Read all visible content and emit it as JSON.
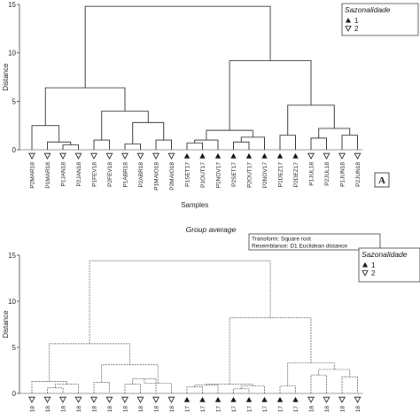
{
  "chart_data": [
    {
      "type": "dendrogram",
      "title": "",
      "xlabel": "Samples",
      "ylabel": "Distance",
      "ylim": [
        0,
        15
      ],
      "yticks": [
        0,
        5,
        10,
        15
      ],
      "panel_letter": "A",
      "legend": {
        "title": "Sazonalidade",
        "entries": [
          {
            "symbol": "filled-triangle",
            "label": "1"
          },
          {
            "symbol": "open-triangle-down",
            "label": "2"
          }
        ],
        "placement": "top-right"
      },
      "leaves": [
        {
          "label": "P2MAR18",
          "group": "2"
        },
        {
          "label": "P1MAR18",
          "group": "2"
        },
        {
          "label": "P1JAN18",
          "group": "2"
        },
        {
          "label": "P2JAN18",
          "group": "2"
        },
        {
          "label": "P1FEV18",
          "group": "2"
        },
        {
          "label": "P2FEV18",
          "group": "2"
        },
        {
          "label": "P1ABR18",
          "group": "2"
        },
        {
          "label": "P2ABR18",
          "group": "2"
        },
        {
          "label": "P1MAIO18",
          "group": "2"
        },
        {
          "label": "P2MAIO18",
          "group": "2"
        },
        {
          "label": "P1SET17",
          "group": "1"
        },
        {
          "label": "P1OUT17",
          "group": "1"
        },
        {
          "label": "P1NOV17",
          "group": "1"
        },
        {
          "label": "P2SET17",
          "group": "1"
        },
        {
          "label": "P2OUT17",
          "group": "1"
        },
        {
          "label": "P2NOV17",
          "group": "1"
        },
        {
          "label": "P1DEZ17",
          "group": "1"
        },
        {
          "label": "P2DEZ17",
          "group": "1"
        },
        {
          "label": "P1JUL18",
          "group": "2"
        },
        {
          "label": "P2JUL18",
          "group": "2"
        },
        {
          "label": "P1JUN18",
          "group": "2"
        },
        {
          "label": "P2JUN18",
          "group": "2"
        }
      ],
      "merges": [
        {
          "id": "a1",
          "left": "L2",
          "right": "L3",
          "height": 0.5
        },
        {
          "id": "a2",
          "left": "L1",
          "right": "a1",
          "height": 0.8
        },
        {
          "id": "a3",
          "left": "L0",
          "right": "a2",
          "height": 2.5
        },
        {
          "id": "a4",
          "left": "L4",
          "right": "L5",
          "height": 1.0
        },
        {
          "id": "a5",
          "left": "L6",
          "right": "L7",
          "height": 0.6
        },
        {
          "id": "a6",
          "left": "L8",
          "right": "L9",
          "height": 1.0
        },
        {
          "id": "a7",
          "left": "a5",
          "right": "a6",
          "height": 2.8
        },
        {
          "id": "a8",
          "left": "a4",
          "right": "a7",
          "height": 4.0
        },
        {
          "id": "a9",
          "left": "a3",
          "right": "a8",
          "height": 6.4
        },
        {
          "id": "b1",
          "left": "L10",
          "right": "L11",
          "height": 0.7
        },
        {
          "id": "b2",
          "left": "b1",
          "right": "L12",
          "height": 1.0
        },
        {
          "id": "b3",
          "left": "L13",
          "right": "L14",
          "height": 0.8
        },
        {
          "id": "b4",
          "left": "b3",
          "right": "L15",
          "height": 1.3
        },
        {
          "id": "b5",
          "left": "b2",
          "right": "b4",
          "height": 2.0
        },
        {
          "id": "b6",
          "left": "L16",
          "right": "L17",
          "height": 1.5
        },
        {
          "id": "b7",
          "left": "L18",
          "right": "L19",
          "height": 1.2
        },
        {
          "id": "b8",
          "left": "L20",
          "right": "L21",
          "height": 1.5
        },
        {
          "id": "b9",
          "left": "b7",
          "right": "b8",
          "height": 2.2
        },
        {
          "id": "b10",
          "left": "b6",
          "right": "b9",
          "height": 4.6
        },
        {
          "id": "b11",
          "left": "b5",
          "right": "b10",
          "height": 9.2
        },
        {
          "id": "root",
          "left": "a9",
          "right": "b11",
          "height": 14.8
        }
      ]
    },
    {
      "type": "dendrogram",
      "title": "Group average",
      "xlabel": "",
      "ylabel": "Distance",
      "ylim": [
        0,
        15
      ],
      "yticks": [
        0,
        5,
        10,
        15
      ],
      "notes": [
        "Transform: Square root",
        "Resemblance: D1 Euclidean distance"
      ],
      "legend": {
        "title": "Sazonalidade",
        "entries": [
          {
            "symbol": "filled-triangle",
            "label": "1"
          },
          {
            "symbol": "open-triangle-down",
            "label": "2"
          }
        ],
        "placement": "top-right"
      },
      "leaves": [
        {
          "label": "18",
          "group": "2"
        },
        {
          "label": "18",
          "group": "2"
        },
        {
          "label": "18",
          "group": "2"
        },
        {
          "label": "18",
          "group": "2"
        },
        {
          "label": "18",
          "group": "2"
        },
        {
          "label": "18",
          "group": "2"
        },
        {
          "label": "18",
          "group": "2"
        },
        {
          "label": "18",
          "group": "2"
        },
        {
          "label": "18",
          "group": "2"
        },
        {
          "label": "18",
          "group": "2"
        },
        {
          "label": "17",
          "group": "1"
        },
        {
          "label": "17",
          "group": "1"
        },
        {
          "label": "17",
          "group": "1"
        },
        {
          "label": "17",
          "group": "1"
        },
        {
          "label": "17",
          "group": "1"
        },
        {
          "label": "17",
          "group": "1"
        },
        {
          "label": "17",
          "group": "1"
        },
        {
          "label": "17",
          "group": "1"
        },
        {
          "label": "18",
          "group": "2"
        },
        {
          "label": "18",
          "group": "2"
        },
        {
          "label": "18",
          "group": "2"
        },
        {
          "label": "18",
          "group": "2"
        }
      ],
      "merges": [
        {
          "id": "a1",
          "left": "L1",
          "right": "L2",
          "height": 0.6
        },
        {
          "id": "a2",
          "left": "a1",
          "right": "L3",
          "height": 1.0
        },
        {
          "id": "a3",
          "left": "L0",
          "right": "a2",
          "height": 1.3
        },
        {
          "id": "a4",
          "left": "L4",
          "right": "L5",
          "height": 1.2
        },
        {
          "id": "a5",
          "left": "L6",
          "right": "L7",
          "height": 1.0
        },
        {
          "id": "a6",
          "left": "a5",
          "right": "L8",
          "height": 1.6
        },
        {
          "id": "a7",
          "left": "a6",
          "right": "L9",
          "height": 1.1
        },
        {
          "id": "a8",
          "left": "a4",
          "right": "a7",
          "height": 3.1
        },
        {
          "id": "a9",
          "left": "a3",
          "right": "a8",
          "height": 5.4
        },
        {
          "id": "b1",
          "left": "L10",
          "right": "L11",
          "height": 0.7
        },
        {
          "id": "b2",
          "left": "b1",
          "right": "L12",
          "height": 0.9
        },
        {
          "id": "b3",
          "left": "L13",
          "right": "L14",
          "height": 0.5
        },
        {
          "id": "b4",
          "left": "b3",
          "right": "L15",
          "height": 0.8
        },
        {
          "id": "b5",
          "left": "b2",
          "right": "b4",
          "height": 1.0
        },
        {
          "id": "b6",
          "left": "L16",
          "right": "L17",
          "height": 0.8
        },
        {
          "id": "b7",
          "left": "L18",
          "right": "L19",
          "height": 2.0
        },
        {
          "id": "b8",
          "left": "L20",
          "right": "L21",
          "height": 1.8
        },
        {
          "id": "b9",
          "left": "b7",
          "right": "b8",
          "height": 2.6
        },
        {
          "id": "b10",
          "left": "b6",
          "right": "b9",
          "height": 3.3
        },
        {
          "id": "b11",
          "left": "b5",
          "right": "b10",
          "height": 8.2
        },
        {
          "id": "root",
          "left": "a9",
          "right": "b11",
          "height": 14.4
        }
      ]
    }
  ]
}
